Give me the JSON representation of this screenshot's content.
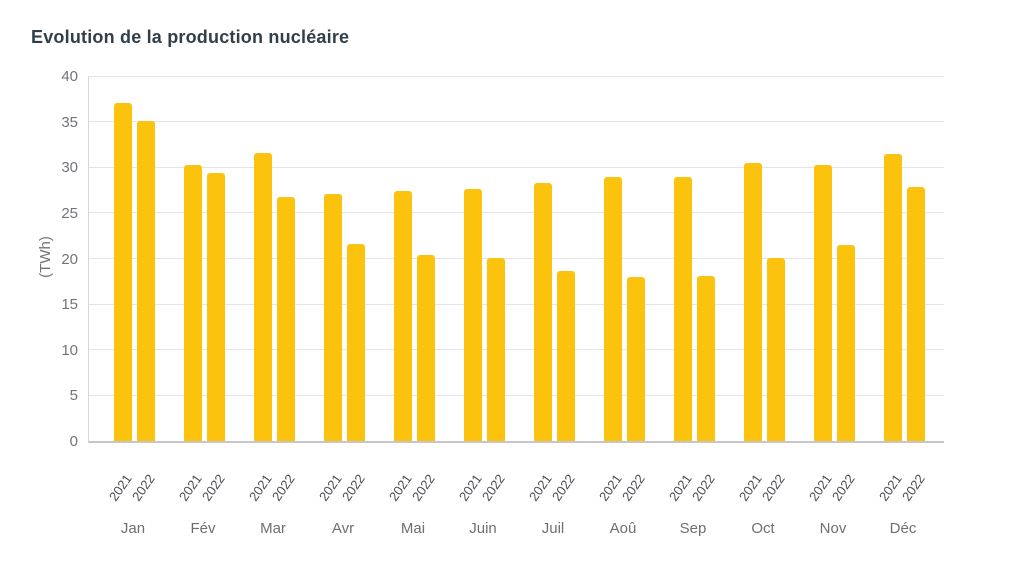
{
  "title": "Evolution de la production nucléaire",
  "chart_data": {
    "type": "bar",
    "categories": [
      "Jan",
      "Fév",
      "Mar",
      "Avr",
      "Mai",
      "Juin",
      "Juil",
      "Aoû",
      "Sep",
      "Oct",
      "Nov",
      "Déc"
    ],
    "series": [
      {
        "name": "2021",
        "values": [
          37.0,
          30.2,
          31.6,
          27.1,
          27.4,
          27.6,
          28.3,
          28.9,
          28.9,
          30.5,
          30.3,
          31.4
        ]
      },
      {
        "name": "2022",
        "values": [
          35.1,
          29.4,
          26.7,
          21.6,
          20.4,
          20.1,
          18.6,
          18.0,
          18.1,
          20.1,
          21.5,
          27.8
        ]
      }
    ],
    "title": "Evolution de la production nucléaire",
    "xlabel": "",
    "ylabel": "(TWh)",
    "ylim": [
      0,
      40
    ],
    "yticks": [
      0,
      5,
      10,
      15,
      20,
      25,
      30,
      35,
      40
    ],
    "grid": true,
    "legend_position": "none",
    "bar_color": "#fbc30d"
  }
}
